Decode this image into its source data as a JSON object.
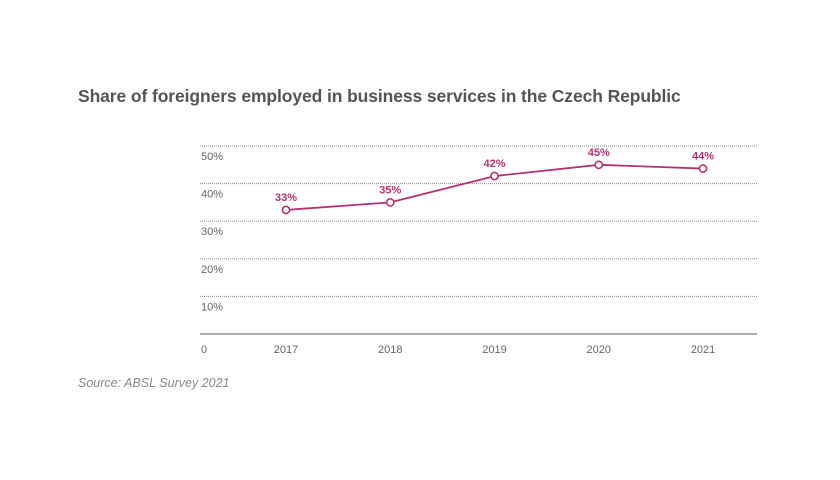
{
  "chart_data": {
    "type": "line",
    "title": "Share of foreigners employed in business services in the Czech Republic",
    "source": "Source: ABSL Survey 2021",
    "categories": [
      "2017",
      "2018",
      "2019",
      "2020",
      "2021"
    ],
    "series": [
      {
        "values": [
          33,
          35,
          42,
          45,
          44
        ],
        "labels": [
          "33%",
          "35%",
          "42%",
          "45%",
          "44%"
        ]
      }
    ],
    "y_ticks": [
      {
        "value": 10,
        "label": "10%"
      },
      {
        "value": 20,
        "label": "20%"
      },
      {
        "value": 30,
        "label": "30%"
      },
      {
        "value": 40,
        "label": "40%"
      },
      {
        "value": 50,
        "label": "50%"
      }
    ],
    "y_zero_label": "0",
    "ylim": [
      0,
      50
    ],
    "xlabel": "",
    "ylabel": "",
    "grid": true,
    "legend": "none",
    "colors": {
      "line": "#b5336e",
      "grid": "#8c8c8c",
      "axis": "#7a7a7a",
      "title": "#555555",
      "source": "#8a8a8a"
    }
  }
}
